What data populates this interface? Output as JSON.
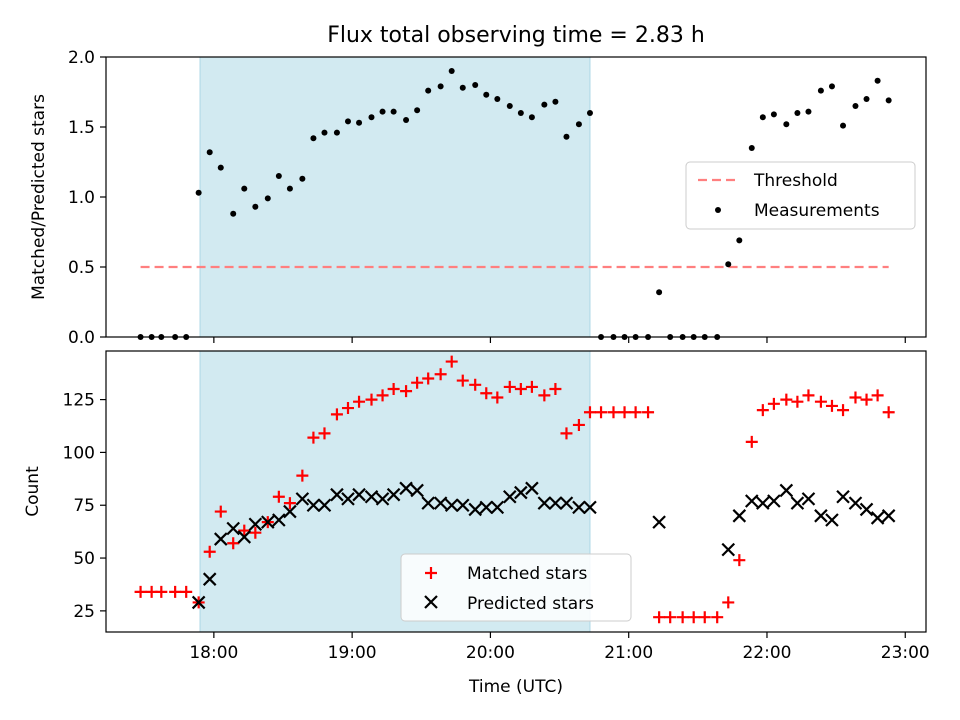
{
  "title": "Flux total observing time = 2.83 h",
  "colors": {
    "shade": "#add8e6",
    "threshold": "#ff7f7f",
    "measurement": "#000000",
    "matched": "#ff0000",
    "predicted": "#000000"
  },
  "chart_data": [
    {
      "type": "scatter",
      "ylabel": "Matched/Predicted stars",
      "xlim": [
        17.22,
        23.15
      ],
      "ylim": [
        0,
        2.0
      ],
      "yticks": [
        0.0,
        0.5,
        1.0,
        1.5,
        2.0
      ],
      "ytick_labels": [
        "0.0",
        "0.5",
        "1.0",
        "1.5",
        "2.0"
      ],
      "shaded_span": [
        17.9,
        20.72
      ],
      "legend_position": "center-right",
      "legend": [
        "Threshold",
        "Measurements"
      ],
      "threshold": {
        "name": "Threshold",
        "y": 0.5,
        "x": [
          17.47,
          22.88
        ],
        "style": "dashed"
      },
      "series": [
        {
          "name": "Measurements",
          "marker": "dot",
          "x": [
            17.47,
            17.55,
            17.62,
            17.72,
            17.8,
            17.89,
            17.97,
            18.05,
            18.14,
            18.22,
            18.3,
            18.39,
            18.47,
            18.55,
            18.64,
            18.72,
            18.8,
            18.89,
            18.97,
            19.05,
            19.14,
            19.22,
            19.3,
            19.39,
            19.47,
            19.55,
            19.64,
            19.72,
            19.8,
            19.89,
            19.97,
            20.05,
            20.14,
            20.22,
            20.3,
            20.39,
            20.47,
            20.55,
            20.64,
            20.72,
            20.8,
            20.89,
            20.97,
            21.05,
            21.14,
            21.22,
            21.3,
            21.39,
            21.47,
            21.55,
            21.64,
            21.72,
            21.8,
            21.89,
            21.97,
            22.05,
            22.14,
            22.22,
            22.3,
            22.39,
            22.47,
            22.55,
            22.64,
            22.72,
            22.8,
            22.88
          ],
          "y": [
            0,
            0,
            0,
            0,
            0,
            1.03,
            1.32,
            1.21,
            0.88,
            1.06,
            0.93,
            0.99,
            1.15,
            1.06,
            1.13,
            1.42,
            1.46,
            1.46,
            1.54,
            1.53,
            1.57,
            1.61,
            1.61,
            1.55,
            1.62,
            1.76,
            1.79,
            1.9,
            1.78,
            1.8,
            1.73,
            1.7,
            1.65,
            1.6,
            1.57,
            1.66,
            1.68,
            1.43,
            1.52,
            1.6,
            0,
            0,
            0,
            0,
            0,
            0.32,
            0,
            0,
            0,
            0,
            0,
            0.52,
            0.69,
            1.35,
            1.57,
            1.59,
            1.52,
            1.6,
            1.61,
            1.76,
            1.79,
            1.51,
            1.65,
            1.7,
            1.83,
            1.69
          ]
        }
      ]
    },
    {
      "type": "scatter",
      "xlabel": "Time (UTC)",
      "ylabel": "Count",
      "xlim": [
        17.22,
        23.15
      ],
      "ylim": [
        15,
        148
      ],
      "xticks": [
        18,
        19,
        20,
        21,
        22,
        23
      ],
      "xtick_labels": [
        "18:00",
        "19:00",
        "20:00",
        "21:00",
        "22:00",
        "23:00"
      ],
      "yticks": [
        25,
        50,
        75,
        100,
        125
      ],
      "ytick_labels": [
        "25",
        "50",
        "75",
        "100",
        "125"
      ],
      "shaded_span": [
        17.9,
        20.72
      ],
      "legend_position": "lower center",
      "legend": [
        "Matched stars",
        "Predicted stars"
      ],
      "series": [
        {
          "name": "Matched stars",
          "marker": "plus",
          "x": [
            17.47,
            17.55,
            17.62,
            17.72,
            17.8,
            17.89,
            17.97,
            18.05,
            18.14,
            18.22,
            18.3,
            18.39,
            18.47,
            18.55,
            18.64,
            18.72,
            18.8,
            18.89,
            18.97,
            19.05,
            19.14,
            19.22,
            19.3,
            19.39,
            19.47,
            19.55,
            19.64,
            19.72,
            19.8,
            19.89,
            19.97,
            20.05,
            20.14,
            20.22,
            20.3,
            20.39,
            20.47,
            20.55,
            20.64,
            20.72,
            20.8,
            20.89,
            20.97,
            21.05,
            21.14,
            21.22,
            21.3,
            21.39,
            21.47,
            21.55,
            21.64,
            21.72,
            21.8,
            21.89,
            21.97,
            22.05,
            22.14,
            22.22,
            22.3,
            22.39,
            22.47,
            22.55,
            22.64,
            22.72,
            22.8,
            22.88
          ],
          "y": [
            34,
            34,
            34,
            34,
            34,
            29,
            53,
            72,
            57,
            63,
            62,
            67,
            79,
            76,
            89,
            107,
            109,
            118,
            121,
            124,
            125,
            127,
            130,
            129,
            133,
            135,
            137,
            143,
            134,
            132,
            128,
            126,
            131,
            130,
            131,
            127,
            130,
            109,
            113,
            119,
            119,
            119,
            119,
            119,
            119,
            22,
            22,
            22,
            22,
            22,
            22,
            29,
            49,
            105,
            120,
            123,
            125,
            124,
            127,
            124,
            122,
            120,
            126,
            125,
            127,
            119
          ]
        },
        {
          "name": "Predicted stars",
          "marker": "x",
          "x": [
            17.89,
            17.97,
            18.05,
            18.14,
            18.22,
            18.3,
            18.39,
            18.47,
            18.55,
            18.64,
            18.72,
            18.8,
            18.89,
            18.97,
            19.05,
            19.14,
            19.22,
            19.3,
            19.39,
            19.47,
            19.55,
            19.64,
            19.72,
            19.8,
            19.89,
            19.97,
            20.05,
            20.14,
            20.22,
            20.3,
            20.39,
            20.47,
            20.55,
            20.64,
            20.72,
            21.22,
            21.72,
            21.8,
            21.89,
            21.97,
            22.05,
            22.14,
            22.22,
            22.3,
            22.39,
            22.47,
            22.55,
            22.64,
            22.72,
            22.8,
            22.88
          ],
          "y": [
            29,
            40,
            59,
            64,
            60,
            66,
            67,
            68,
            72,
            78,
            75,
            75,
            80,
            78,
            80,
            79,
            78,
            80,
            83,
            82,
            76,
            76,
            75,
            75,
            73,
            74,
            74,
            79,
            81,
            83,
            76,
            76,
            76,
            74,
            74,
            67,
            54,
            70,
            77,
            76,
            77,
            82,
            76,
            78,
            70,
            68,
            79,
            76,
            73,
            69,
            70
          ]
        }
      ]
    }
  ]
}
